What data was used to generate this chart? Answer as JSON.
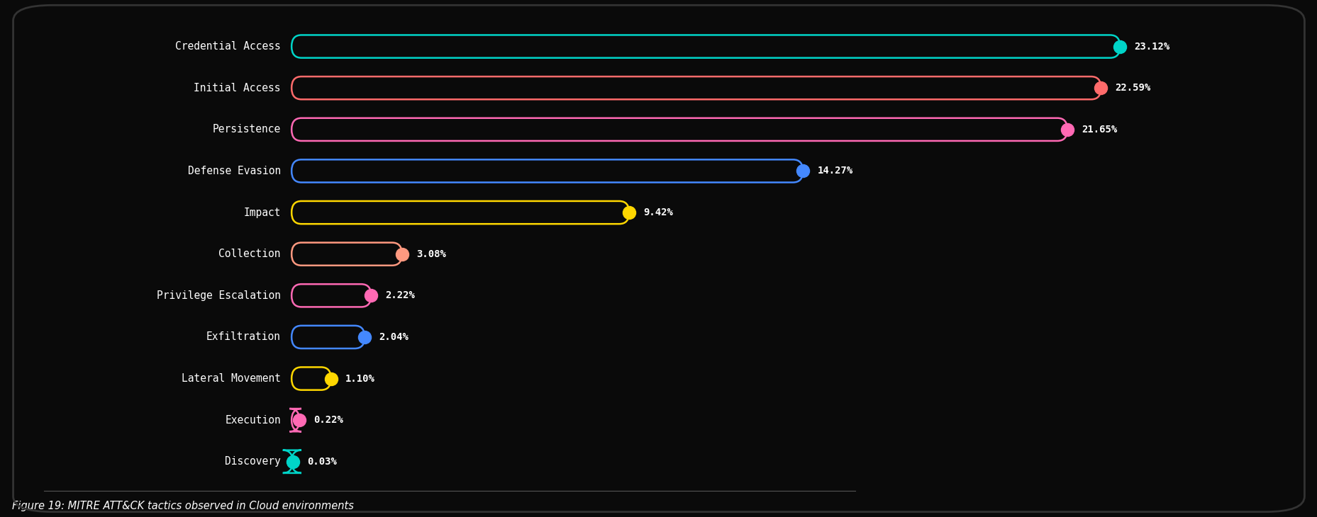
{
  "categories": [
    "Credential Access",
    "Initial Access",
    "Persistence",
    "Defense Evasion",
    "Impact",
    "Collection",
    "Privilege Escalation",
    "Exfiltration",
    "Lateral Movement",
    "Execution",
    "Discovery"
  ],
  "values": [
    23.12,
    22.59,
    21.65,
    14.27,
    9.42,
    3.08,
    2.22,
    2.04,
    1.1,
    0.22,
    0.03
  ],
  "labels": [
    "23.12%",
    "22.59%",
    "21.65%",
    "14.27%",
    "9.42%",
    "3.08%",
    "2.22%",
    "2.04%",
    "1.10%",
    "0.22%",
    "0.03%"
  ],
  "bar_colors": [
    "#00D4C8",
    "#FF6B6B",
    "#FF69B4",
    "#4488FF",
    "#FFD700",
    "#FF9980",
    "#FF69B4",
    "#4488FF",
    "#FFD700",
    "#FF69B4",
    "#00D4C8"
  ],
  "background_color": "#0A0A0A",
  "text_color": "#FFFFFF",
  "caption": "Figure 19: MITRE ATT&CK tactics observed in Cloud environments",
  "max_value": 25.0
}
